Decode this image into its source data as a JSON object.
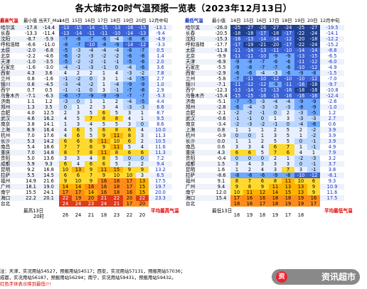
{
  "title": "各大城市20时气温预报一览表（2023年12月13日）",
  "left": {
    "headers": [
      "最高气温",
      "最小值",
      "当天T_Max",
      "14日",
      "15日",
      "16日",
      "17日",
      "18日",
      "19日",
      "20日",
      "12月中旬"
    ],
    "rows": [
      [
        "哈尔滨",
        "-17.8",
        "-14.4",
        "-13",
        "-15",
        "-14",
        "-15",
        "-13",
        "-16",
        "-15",
        "-13.1"
      ],
      [
        "长春",
        "-13.3",
        "-11.4",
        "-13",
        "-14",
        "-11",
        "-11",
        "-10",
        "-14",
        "-13",
        "-9.4"
      ],
      [
        "沈阳",
        "-8.7",
        "-5.9",
        "-7",
        "-8",
        "-7",
        "-6",
        "-4",
        "-8",
        "-8",
        "-4.9"
      ],
      [
        "呼和浩特",
        "-6.6",
        "-11.0",
        "-8",
        "-7",
        "-10",
        "-8",
        "-9",
        "-14",
        "-12",
        "-3.3"
      ],
      [
        "太原",
        "-2.0",
        "-6.8",
        "-5",
        "-3",
        "-4",
        "-4",
        "-4",
        "-8",
        "-7",
        "0.5"
      ],
      [
        "北京",
        "-2.2",
        "-4.6",
        "-6",
        "-2",
        "-3",
        "-2",
        "-2",
        "-6",
        "-8",
        "1.4"
      ],
      [
        "天津",
        "-1.0",
        "-3.5",
        "-5",
        "-2",
        "-2",
        "-1",
        "-1",
        "-5",
        "-6",
        "2.0"
      ],
      [
        "石家庄",
        "-1.6",
        "-3.0",
        "-4",
        "-1",
        "-3",
        "-1",
        "0",
        "-4",
        "-6",
        "3.6"
      ],
      [
        "西安",
        "4.3",
        "3.6",
        "4",
        "2",
        "2",
        "1",
        "4",
        "-3",
        "-2",
        "7.8"
      ],
      [
        "兰州",
        "0.8",
        "-1.6",
        "-1",
        "-2",
        "0",
        "3",
        "1",
        "-4",
        "-5",
        "2.7"
      ],
      [
        "银川",
        "0.6",
        "-4.5",
        "-3",
        "-4",
        "-2",
        "1",
        "-4",
        "-9",
        "-9",
        "1.0"
      ],
      [
        "西宁",
        "0.7",
        "0.5",
        "-1",
        "-1",
        "0",
        "3",
        "-1",
        "-7",
        "-8",
        "2.9"
      ],
      [
        "乌鲁木齐",
        "-7.1",
        "-6.3",
        "-6",
        "-7",
        "-9",
        "-9",
        "-9",
        "-7",
        "-7",
        "-5.3"
      ],
      [
        "济南",
        "1.1",
        "1.2",
        "-3",
        "0",
        "1",
        "1",
        "2",
        "-4",
        "-5",
        "4.4"
      ],
      [
        "郑州",
        "1.3",
        "3.5",
        "0",
        "1",
        "2",
        "3",
        "4",
        "-3",
        "-3",
        "6.6"
      ],
      [
        "合肥",
        "4.0",
        "12.5",
        "2",
        "3",
        "5",
        "6",
        "5",
        "3",
        "1",
        "8.7"
      ],
      [
        "武汉",
        "4.6",
        "16.2",
        "4",
        "5",
        "7",
        "8",
        "8",
        "4",
        "1",
        "9.5"
      ],
      [
        "南京",
        "3.8",
        "14.1",
        "1",
        "3",
        "4",
        "5",
        "5",
        "3",
        "0",
        "8.6"
      ],
      [
        "上海",
        "6.9",
        "16.4",
        "4",
        "6",
        "5",
        "6",
        "8",
        "6",
        "4",
        "10.0"
      ],
      [
        "杭州",
        "7.0",
        "17.6",
        "4",
        "6",
        "5",
        "9",
        "11",
        "8",
        "3",
        "11.3"
      ],
      [
        "长沙",
        "5.3",
        "14.2",
        "6",
        "6",
        "6",
        "11",
        "10",
        "6",
        "2",
        "10.5"
      ],
      [
        "南昌",
        "5.4",
        "18.6",
        "7",
        "7",
        "6",
        "9",
        "11",
        "5",
        "4",
        "11.6"
      ],
      [
        "重庆",
        "7.0",
        "14.8",
        "8",
        "7",
        "8",
        "11",
        "8",
        "6",
        "6",
        "11.3"
      ],
      [
        "贵阳",
        "5.0",
        "13.6",
        "3",
        "3",
        "4",
        "8",
        "5",
        "0",
        "0",
        "7.2"
      ],
      [
        "成都",
        "5.9",
        "9.3",
        "6",
        "4",
        "6",
        "6",
        "5",
        "2",
        "2",
        "9.4"
      ],
      [
        "昆明",
        "9.2",
        "16.8",
        "10",
        "13",
        "9",
        "11",
        "15",
        "9",
        "9",
        "13.2"
      ],
      [
        "拉萨",
        "5.5",
        "14.5",
        "6",
        "6",
        "7",
        "9",
        "10",
        "10",
        "3",
        "6.5"
      ],
      [
        "福州",
        "14.9",
        "21.6",
        "9",
        "10",
        "9",
        "16",
        "18",
        "17",
        "13",
        "17.5"
      ],
      [
        "广州",
        "18.1",
        "19.0",
        "14",
        "14",
        "16",
        "16",
        "18",
        "17",
        "15",
        "19.7"
      ],
      [
        "南宁",
        "15.5",
        "24.1",
        "17",
        "17",
        "14",
        "16",
        "18",
        "16",
        "15",
        "20.0"
      ],
      [
        "海口",
        "22.2",
        "20.1",
        "22",
        "19",
        "20",
        "21",
        "22",
        "20",
        "22",
        "23.3"
      ],
      [
        "台北",
        "",
        "",
        "24",
        "24",
        "23",
        "24",
        "21",
        "17",
        "20",
        ""
      ]
    ],
    "foot_min_label": "最高13日",
    "foot_sub": "20时",
    "foot_legend": "平均最高气温",
    "foot_row2": [
      "26",
      "24",
      "21",
      "18",
      "23",
      "22",
      "20"
    ]
  },
  "right": {
    "headers": [
      "最低气温",
      "最小值",
      "14日",
      "15日",
      "16日",
      "17日",
      "18日",
      "19日",
      "20日",
      "12月中旬"
    ],
    "rows": [
      [
        "哈尔滨",
        "-26.0",
        "-25",
        "-27",
        "-26",
        "-27",
        "-24",
        "-25",
        "-27",
        "-19.5"
      ],
      [
        "长春",
        "-20.5",
        "-18",
        "-18",
        "-17",
        "-18",
        "-17",
        "-22",
        "-24",
        "-14.1"
      ],
      [
        "沈阳",
        "-15.3",
        "-16",
        "-13",
        "-14",
        "-14",
        "-12",
        "-20",
        "-18",
        "-12.2"
      ],
      [
        "呼和浩特",
        "-17.7",
        "-17",
        "-19",
        "-21",
        "-20",
        "-17",
        "-22",
        "-24",
        "-15.2"
      ],
      [
        "太原",
        "-11.8",
        "-11",
        "-14",
        "-13",
        "-11",
        "-10",
        "-14",
        "-14",
        "-8.8"
      ],
      [
        "北京",
        "-9.9",
        "-11",
        "-11",
        "-10",
        "-9",
        "-9",
        "-13",
        "-15",
        "-6.5"
      ],
      [
        "天津",
        "-6.9",
        "-9",
        "-8",
        "-7",
        "-6",
        "-6",
        "-11",
        "-12",
        "-6.0"
      ],
      [
        "石家庄",
        "-5.5",
        "-9",
        "-8",
        "-7",
        "-7",
        "-6",
        "-10",
        "-12",
        "-4.9"
      ],
      [
        "西安",
        "-2.9",
        "-6",
        "-6",
        "-4",
        "-3",
        "-6",
        "-9",
        "-8",
        "-1.5"
      ],
      [
        "兰州",
        "-5.8",
        "-7",
        "-11",
        "-10",
        "-12",
        "-10",
        "-10",
        "-12",
        "-7.0"
      ],
      [
        "银川",
        "-7.1",
        "-11",
        "-12",
        "-12",
        "-9",
        "-11",
        "-16",
        "-18",
        "-9.7"
      ],
      [
        "西宁",
        "-12.3",
        "-13",
        "-14",
        "-13",
        "-13",
        "-16",
        "-18",
        "-18",
        "-10.8"
      ],
      [
        "乌鲁木齐",
        "-15.4",
        "-15",
        "-15",
        "-16",
        "-15",
        "-16",
        "-16",
        "-16",
        "-12.4"
      ],
      [
        "济南",
        "-5.1",
        "-7",
        "-5",
        "-3",
        "-4",
        "-4",
        "-9",
        "-9",
        "-2.6"
      ],
      [
        "郑州",
        "-2.8",
        "-6",
        "-4",
        "-3",
        "-3",
        "-3",
        "-8",
        "-9",
        "-1.0"
      ],
      [
        "合肥",
        "-2.1",
        "-2",
        "-2",
        "-1",
        "0",
        "2",
        "-3",
        "-5",
        "1.2"
      ],
      [
        "武汉",
        "-0.6",
        "-1",
        "-1",
        "0",
        "1",
        "3",
        "-3",
        "-3",
        "2.7"
      ],
      [
        "南京",
        "-3.4",
        "-2",
        "-3",
        "-2",
        "-1",
        "0",
        "-4",
        "-6",
        "0.6"
      ],
      [
        "上海",
        "0.8",
        "1",
        "1",
        "1",
        "2",
        "5",
        "2",
        "-2",
        "3.9"
      ],
      [
        "杭州",
        "-0.9",
        "0",
        "0",
        "1",
        "3",
        "5",
        "1",
        "-2",
        "3.9"
      ],
      [
        "长沙",
        "0.0",
        "1",
        "1",
        "2",
        "5",
        "5",
        "0",
        "-1",
        "3.9"
      ],
      [
        "南昌",
        "0.6",
        "3",
        "3",
        "4",
        "6",
        "7",
        "1",
        "-1",
        "4.9"
      ],
      [
        "重庆",
        "4.3",
        "6",
        "6",
        "5",
        "7",
        "6",
        "4",
        "1",
        "7.9"
      ],
      [
        "贵阳",
        "-0.4",
        "0",
        "0",
        "0",
        "2",
        "1",
        "-2",
        "-3",
        "3.2"
      ],
      [
        "成都",
        "1.5",
        "3",
        "4",
        "3",
        "3",
        "3",
        "0",
        "-1",
        "3.7"
      ],
      [
        "昆明",
        "1.6",
        "1",
        "2",
        "4",
        "3",
        "7",
        "3",
        "-1",
        "3.8"
      ],
      [
        "拉萨",
        "-8.6",
        "-8",
        "-8",
        "-6",
        "-9",
        "-8",
        "-10",
        "-12",
        "-8.1"
      ],
      [
        "福州",
        "9.1",
        "8",
        "7",
        "6",
        "8",
        "11",
        "10",
        "6",
        "9.3"
      ],
      [
        "广州",
        "9.4",
        "9",
        "8",
        "9",
        "11",
        "13",
        "13",
        "9",
        "10.9"
      ],
      [
        "南宁",
        "12.0",
        "10",
        "11",
        "12",
        "14",
        "15",
        "13",
        "9",
        "11.6"
      ],
      [
        "海口",
        "15.4",
        "17",
        "16",
        "16",
        "18",
        "18",
        "19",
        "16",
        "17.5"
      ],
      [
        "台北",
        "",
        "18",
        "16",
        "17",
        "18",
        "19",
        "19",
        "17",
        ""
      ]
    ],
    "foot_min_label": "最低13日",
    "foot_legend": "平均最低气温",
    "foot_row2": [
      "18",
      "19",
      "18",
      "19",
      "17",
      "18"
    ]
  },
  "notes": [
    "注：天津，实况用站54527，预报用站54517；西安，实况用站57131，预报用站57036；",
    "成都，实况用站56187，预报用站56294；南宁，实况用站59431，预报用站59432。",
    "红色字体表示降到最低!!!"
  ],
  "watermark": "资讯超市",
  "colors": {
    "navy": "#1f3f8f",
    "blue": "#3b63d6",
    "sky": "#6ea8ff",
    "light": "#bcd7ff",
    "pale": "#e8f0ff",
    "yellow": "#ffd92e",
    "amber": "#ffb300",
    "orange": "#ff8c1a",
    "red": "#e03a1a",
    "rowA": "#eef2fb",
    "rowB": "#ffffff"
  }
}
